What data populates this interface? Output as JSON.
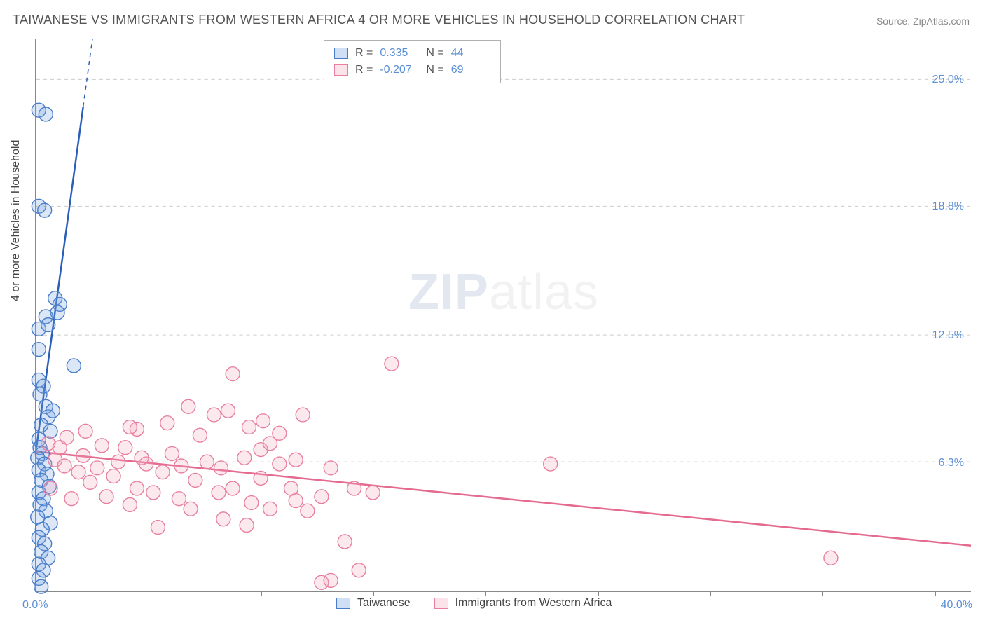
{
  "title": "TAIWANESE VS IMMIGRANTS FROM WESTERN AFRICA 4 OR MORE VEHICLES IN HOUSEHOLD CORRELATION CHART",
  "source_label": "Source:",
  "source_name": "ZipAtlas.com",
  "ylabel": "4 or more Vehicles in Household",
  "watermark_a": "ZIP",
  "watermark_b": "atlas",
  "chart": {
    "type": "scatter",
    "xlim": [
      0,
      40
    ],
    "ylim": [
      0,
      27
    ],
    "x_origin_label": "0.0%",
    "x_max_label": "40.0%",
    "y_gridlines": [
      6.3,
      12.5,
      18.8,
      25.0
    ],
    "y_grid_labels": [
      "6.3%",
      "12.5%",
      "18.8%",
      "25.0%"
    ],
    "x_tick_positions": [
      4.8,
      9.6,
      14.4,
      19.2,
      24.0,
      28.8,
      33.6,
      38.4
    ],
    "grid_color": "#cccccc",
    "axis_color": "#888888",
    "background_color": "#ffffff",
    "label_color": "#5b8fd6",
    "marker_radius": 10,
    "marker_fill_opacity": 0.25,
    "marker_stroke_width": 1.4,
    "trend_line_width": 2.5,
    "series": [
      {
        "name": "Taiwanese",
        "color": "#6f9fe0",
        "stroke": "#4a7dc9",
        "trend_color": "#2a5fb8",
        "r": 0.335,
        "n": 44,
        "trend": {
          "x1": 0.0,
          "y1": 7.0,
          "x2": 2.4,
          "y2": 27.0,
          "dashed_after_x": 2.0
        },
        "points": [
          [
            0.1,
            23.5
          ],
          [
            0.4,
            23.3
          ],
          [
            0.1,
            18.8
          ],
          [
            0.35,
            18.6
          ],
          [
            0.8,
            14.3
          ],
          [
            1.0,
            14.0
          ],
          [
            0.9,
            13.6
          ],
          [
            0.4,
            13.4
          ],
          [
            0.1,
            12.8
          ],
          [
            1.6,
            11.0
          ],
          [
            0.1,
            10.3
          ],
          [
            0.3,
            10.0
          ],
          [
            0.15,
            9.6
          ],
          [
            0.4,
            9.0
          ],
          [
            0.5,
            8.5
          ],
          [
            0.2,
            8.1
          ],
          [
            0.6,
            7.8
          ],
          [
            0.1,
            7.4
          ],
          [
            0.15,
            7.0
          ],
          [
            0.25,
            6.7
          ],
          [
            0.05,
            6.5
          ],
          [
            0.35,
            6.2
          ],
          [
            0.1,
            5.9
          ],
          [
            0.45,
            5.7
          ],
          [
            0.2,
            5.4
          ],
          [
            0.55,
            5.1
          ],
          [
            0.1,
            4.8
          ],
          [
            0.3,
            4.5
          ],
          [
            0.15,
            4.2
          ],
          [
            0.4,
            3.9
          ],
          [
            0.05,
            3.6
          ],
          [
            0.6,
            3.3
          ],
          [
            0.25,
            3.0
          ],
          [
            0.1,
            2.6
          ],
          [
            0.35,
            2.3
          ],
          [
            0.2,
            1.9
          ],
          [
            0.5,
            1.6
          ],
          [
            0.1,
            1.3
          ],
          [
            0.3,
            1.0
          ],
          [
            0.1,
            0.6
          ],
          [
            0.2,
            0.2
          ],
          [
            0.5,
            13.0
          ],
          [
            0.7,
            8.8
          ],
          [
            0.1,
            11.8
          ]
        ]
      },
      {
        "name": "Immigrants from Western Africa",
        "color": "#f5a7bd",
        "stroke": "#e87fa0",
        "trend_color": "#e46a8f",
        "r": -0.207,
        "n": 69,
        "trend": {
          "x1": 0.0,
          "y1": 6.8,
          "x2": 40.0,
          "y2": 2.2,
          "dashed_after_x": 40.0
        },
        "points": [
          [
            0.5,
            7.2
          ],
          [
            0.8,
            6.4
          ],
          [
            1.0,
            7.0
          ],
          [
            1.2,
            6.1
          ],
          [
            1.3,
            7.5
          ],
          [
            1.8,
            5.8
          ],
          [
            2.0,
            6.6
          ],
          [
            2.3,
            5.3
          ],
          [
            2.6,
            6.0
          ],
          [
            2.8,
            7.1
          ],
          [
            3.0,
            4.6
          ],
          [
            3.3,
            5.6
          ],
          [
            3.8,
            7.0
          ],
          [
            4.0,
            4.2
          ],
          [
            4.3,
            5.0
          ],
          [
            4.3,
            7.9
          ],
          [
            4.7,
            6.2
          ],
          [
            5.2,
            3.1
          ],
          [
            5.4,
            5.8
          ],
          [
            5.8,
            6.7
          ],
          [
            6.1,
            4.5
          ],
          [
            6.5,
            9.0
          ],
          [
            6.8,
            5.4
          ],
          [
            7.0,
            7.6
          ],
          [
            7.6,
            8.6
          ],
          [
            7.8,
            4.8
          ],
          [
            7.9,
            6.0
          ],
          [
            8.2,
            8.8
          ],
          [
            8.4,
            5.0
          ],
          [
            8.4,
            10.6
          ],
          [
            8.9,
            6.5
          ],
          [
            9.1,
            8.0
          ],
          [
            9.2,
            4.3
          ],
          [
            9.6,
            6.9
          ],
          [
            9.6,
            5.5
          ],
          [
            9.7,
            8.3
          ],
          [
            10.0,
            4.0
          ],
          [
            10.4,
            6.2
          ],
          [
            10.4,
            7.7
          ],
          [
            10.9,
            5.0
          ],
          [
            11.1,
            6.4
          ],
          [
            11.1,
            4.4
          ],
          [
            11.4,
            8.6
          ],
          [
            12.2,
            0.4
          ],
          [
            12.6,
            0.5
          ],
          [
            12.2,
            4.6
          ],
          [
            12.6,
            6.0
          ],
          [
            13.2,
            2.4
          ],
          [
            13.6,
            5.0
          ],
          [
            13.8,
            1.0
          ],
          [
            14.4,
            4.8
          ],
          [
            15.2,
            11.1
          ],
          [
            11.6,
            3.9
          ],
          [
            10.0,
            7.2
          ],
          [
            9.0,
            3.2
          ],
          [
            8.0,
            3.5
          ],
          [
            7.3,
            6.3
          ],
          [
            6.6,
            4.0
          ],
          [
            6.2,
            6.1
          ],
          [
            5.6,
            8.2
          ],
          [
            5.0,
            4.8
          ],
          [
            4.5,
            6.5
          ],
          [
            4.0,
            8.0
          ],
          [
            3.5,
            6.3
          ],
          [
            22.0,
            6.2
          ],
          [
            34.0,
            1.6
          ],
          [
            2.1,
            7.8
          ],
          [
            1.5,
            4.5
          ],
          [
            0.6,
            5.0
          ]
        ]
      }
    ]
  },
  "legend_top": {
    "r_label": "R =",
    "n_label": "N ="
  },
  "legend_bottom": {
    "items": [
      "Taiwanese",
      "Immigrants from Western Africa"
    ]
  }
}
